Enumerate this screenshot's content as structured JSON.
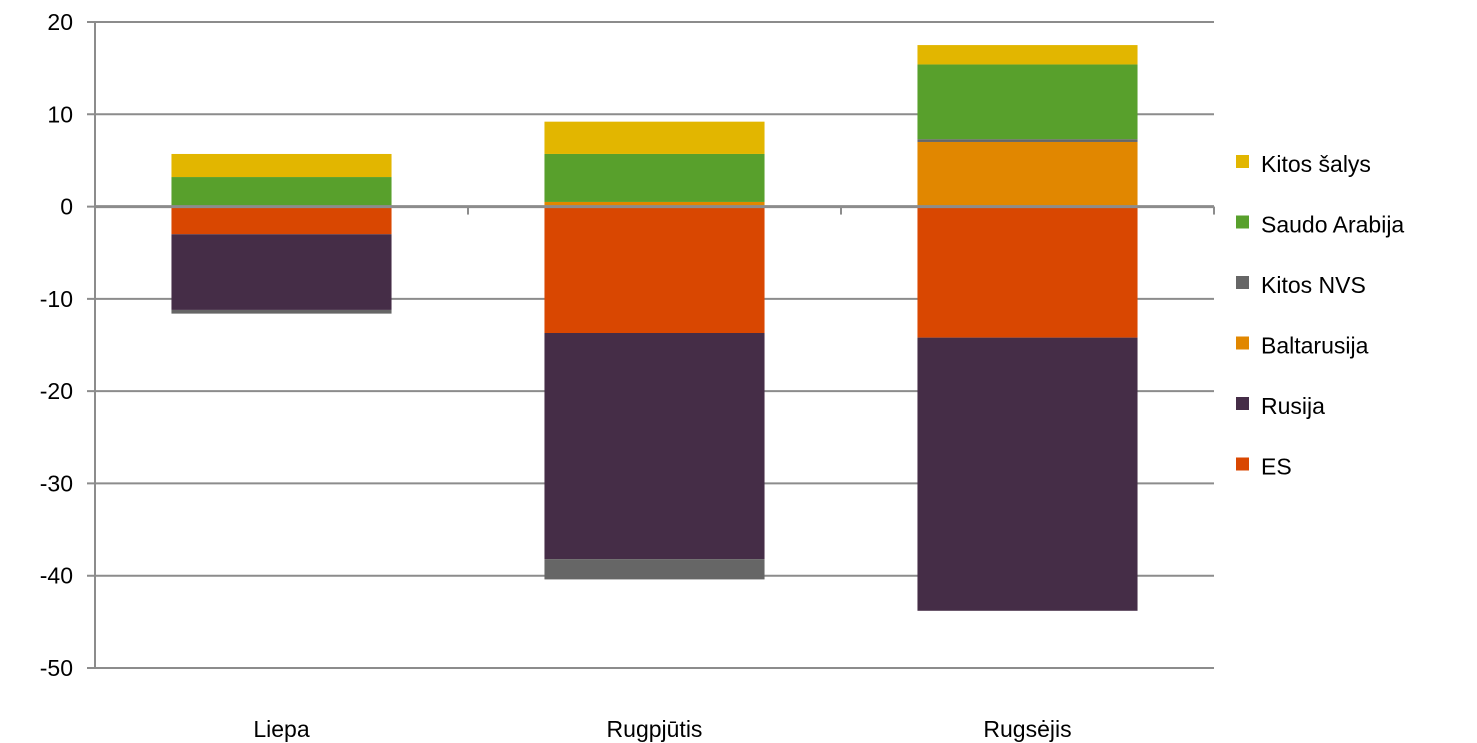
{
  "chart_data": {
    "type": "bar",
    "stacked": true,
    "categories": [
      "Liepa",
      "Rugpjūtis",
      "Rugsėjis"
    ],
    "series": [
      {
        "name": "ES",
        "color": "#d94701",
        "values": [
          -3.0,
          -13.7,
          -14.2
        ]
      },
      {
        "name": "Rusija",
        "color": "#452d47",
        "values": [
          -8.2,
          -24.5,
          -29.6
        ]
      },
      {
        "name": "Baltarusija",
        "color": "#e18700",
        "values": [
          0.0,
          0.5,
          7.0
        ]
      },
      {
        "name": "Kitos NVS",
        "color": "#666666",
        "values": [
          -0.4,
          -2.2,
          0.3
        ]
      },
      {
        "name": "Saudo Arabija",
        "color": "#58a02c",
        "values": [
          3.2,
          5.2,
          8.1
        ]
      },
      {
        "name": "Kitos šalys",
        "color": "#e2b600",
        "values": [
          2.5,
          3.5,
          2.1
        ]
      }
    ],
    "legend_order": [
      "Kitos šalys",
      "Saudo Arabija",
      "Kitos NVS",
      "Baltarusija",
      "Rusija",
      "ES"
    ],
    "ylim": [
      -50,
      20
    ],
    "yticks": [
      "20",
      "10",
      "0",
      "-10",
      "-20",
      "-30",
      "-40",
      "-50"
    ],
    "title": "",
    "xlabel": "",
    "ylabel": "",
    "grid": true,
    "legend_position": "right"
  }
}
